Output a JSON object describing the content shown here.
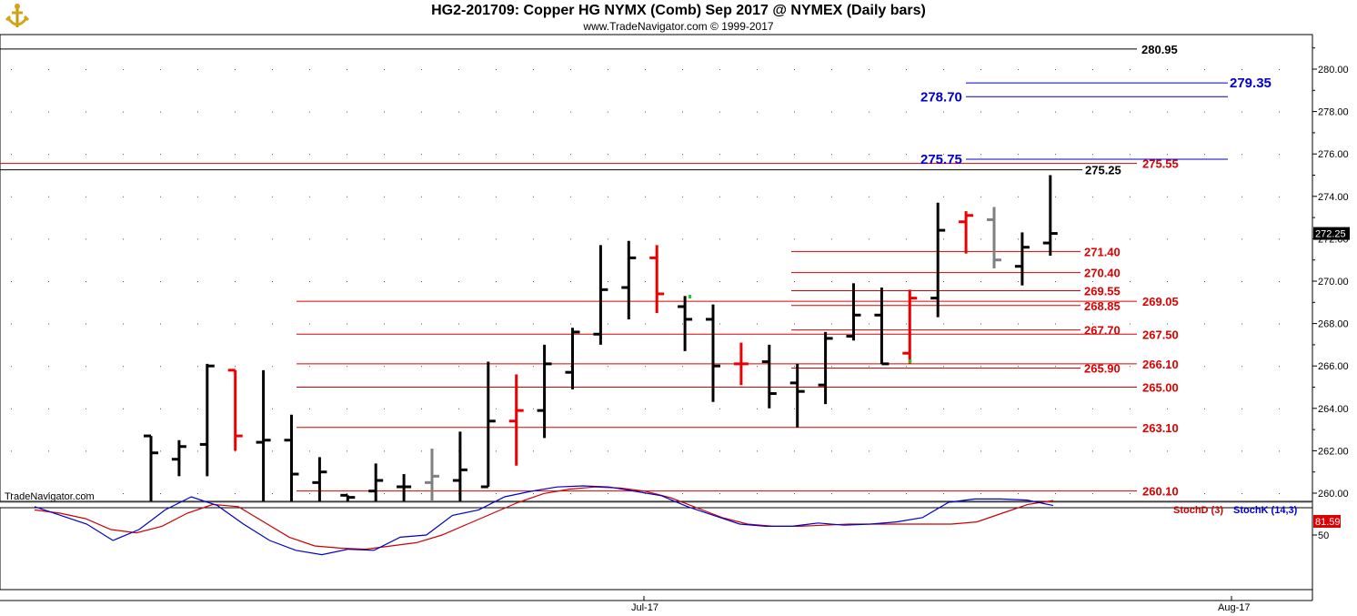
{
  "header": {
    "title": "HG2-201709:  Copper HG NYMX (Comb) Sep 2017 @ NYMEX  (Daily bars)",
    "subtitle": "www.TradeNavigator.com © 1999-2017"
  },
  "watermark": "TradeNavigator.com",
  "colors": {
    "up_bar": "#000000",
    "down_bar": "#ee0000",
    "neutral_bar": "#808080",
    "support_line": "#dd0000",
    "target_line": "#0000cc",
    "stochD": "#cc0000",
    "stochK": "#0000cc"
  },
  "chart_data": [
    {
      "type": "ohlc",
      "name": "price",
      "ylim": [
        259.6,
        281.8
      ],
      "y_ticks": [
        "260.00",
        "262.00",
        "264.00",
        "266.00",
        "268.00",
        "270.00",
        "272.00",
        "274.00",
        "276.00",
        "278.00",
        "280.00"
      ],
      "x_tick_labels": [
        "Jul-17",
        "Aug-17"
      ],
      "last_price_label": "272.25",
      "bars": [
        {
          "o": 262.7,
          "h": 262.7,
          "l": 259.6,
          "c": 261.9,
          "color": "black"
        },
        {
          "o": 261.6,
          "h": 262.5,
          "l": 260.8,
          "c": 262.2,
          "color": "black"
        },
        {
          "o": 262.3,
          "h": 266.1,
          "l": 260.8,
          "c": 266.0,
          "color": "black"
        },
        {
          "o": 265.8,
          "h": 265.8,
          "l": 262.0,
          "c": 262.7,
          "color": "red"
        },
        {
          "o": 262.4,
          "h": 265.8,
          "l": 259.6,
          "c": 262.5,
          "color": "black"
        },
        {
          "o": 262.5,
          "h": 263.7,
          "l": 259.6,
          "c": 260.9,
          "color": "black"
        },
        {
          "o": 260.5,
          "h": 261.7,
          "l": 259.6,
          "c": 261.0,
          "color": "black"
        },
        {
          "o": 259.9,
          "h": 259.9,
          "l": 259.6,
          "c": 259.8,
          "color": "black"
        },
        {
          "o": 260.1,
          "h": 261.4,
          "l": 259.6,
          "c": 260.6,
          "color": "black"
        },
        {
          "o": 260.3,
          "h": 260.9,
          "l": 259.6,
          "c": 260.3,
          "color": "black"
        },
        {
          "o": 260.5,
          "h": 262.1,
          "l": 259.6,
          "c": 260.8,
          "color": "gray"
        },
        {
          "o": 260.6,
          "h": 262.9,
          "l": 259.6,
          "c": 261.1,
          "color": "black"
        },
        {
          "o": 260.3,
          "h": 266.2,
          "l": 260.3,
          "c": 263.4,
          "color": "black"
        },
        {
          "o": 263.4,
          "h": 265.6,
          "l": 261.3,
          "c": 263.9,
          "color": "red"
        },
        {
          "o": 263.9,
          "h": 267.0,
          "l": 262.6,
          "c": 266.1,
          "color": "black"
        },
        {
          "o": 265.7,
          "h": 267.8,
          "l": 264.9,
          "c": 267.6,
          "color": "black"
        },
        {
          "o": 267.5,
          "h": 271.7,
          "l": 267.0,
          "c": 269.6,
          "color": "black"
        },
        {
          "o": 269.7,
          "h": 271.9,
          "l": 268.2,
          "c": 271.1,
          "color": "black"
        },
        {
          "o": 271.1,
          "h": 271.7,
          "l": 268.5,
          "c": 269.4,
          "color": "red"
        },
        {
          "o": 268.8,
          "h": 269.3,
          "l": 266.7,
          "c": 268.2,
          "color": "black"
        },
        {
          "o": 268.2,
          "h": 268.9,
          "l": 264.3,
          "c": 266.0,
          "color": "black"
        },
        {
          "o": 266.1,
          "h": 267.1,
          "l": 265.1,
          "c": 266.1,
          "color": "red"
        },
        {
          "o": 266.2,
          "h": 267.0,
          "l": 264.0,
          "c": 264.7,
          "color": "black"
        },
        {
          "o": 265.2,
          "h": 266.1,
          "l": 263.1,
          "c": 264.8,
          "color": "black"
        },
        {
          "o": 265.1,
          "h": 267.6,
          "l": 264.2,
          "c": 267.3,
          "color": "black"
        },
        {
          "o": 267.4,
          "h": 269.9,
          "l": 267.2,
          "c": 268.4,
          "color": "black"
        },
        {
          "o": 268.4,
          "h": 269.7,
          "l": 266.1,
          "c": 266.1,
          "color": "black"
        },
        {
          "o": 266.6,
          "h": 269.6,
          "l": 266.1,
          "c": 269.2,
          "color": "red"
        },
        {
          "o": 269.2,
          "h": 273.7,
          "l": 268.3,
          "c": 272.4,
          "color": "black"
        },
        {
          "o": 272.8,
          "h": 273.3,
          "l": 271.3,
          "c": 273.1,
          "color": "red"
        },
        {
          "o": 272.9,
          "h": 273.5,
          "l": 270.6,
          "c": 271.0,
          "color": "gray"
        },
        {
          "o": 270.7,
          "h": 272.3,
          "l": 269.8,
          "c": 271.6,
          "color": "black"
        },
        {
          "o": 271.8,
          "h": 275.0,
          "l": 271.2,
          "c": 272.25,
          "color": "black"
        }
      ],
      "levels": [
        {
          "value": 280.95,
          "label": "280.95",
          "color": "black",
          "span": "full"
        },
        {
          "value": 279.35,
          "label": "279.35",
          "color": "blue",
          "span": "short"
        },
        {
          "value": 278.7,
          "label": "278.70",
          "color": "blue",
          "span": "short"
        },
        {
          "value": 275.75,
          "label": "275.75",
          "color": "blue",
          "span": "short"
        },
        {
          "value": 275.55,
          "label": "275.55",
          "color": "red",
          "span": "full"
        },
        {
          "value": 275.25,
          "label": "275.25",
          "color": "black",
          "span": "full"
        },
        {
          "value": 271.4,
          "label": "271.40",
          "color": "red",
          "span": "short"
        },
        {
          "value": 270.4,
          "label": "270.40",
          "color": "red",
          "span": "short"
        },
        {
          "value": 269.55,
          "label": "269.55",
          "color": "red",
          "span": "short"
        },
        {
          "value": 269.05,
          "label": "269.05",
          "color": "red",
          "span": "long"
        },
        {
          "value": 268.85,
          "label": "268.85",
          "color": "red",
          "span": "short"
        },
        {
          "value": 267.7,
          "label": "267.70",
          "color": "red",
          "span": "short"
        },
        {
          "value": 267.5,
          "label": "267.50",
          "color": "red",
          "span": "long"
        },
        {
          "value": 266.1,
          "label": "266.10",
          "color": "red",
          "span": "long"
        },
        {
          "value": 265.9,
          "label": "265.90",
          "color": "red",
          "span": "short"
        },
        {
          "value": 265.0,
          "label": "265.00",
          "color": "red",
          "span": "long"
        },
        {
          "value": 263.1,
          "label": "263.10",
          "color": "red",
          "span": "long"
        },
        {
          "value": 260.1,
          "label": "260.10",
          "color": "red",
          "span": "long"
        }
      ]
    },
    {
      "type": "line",
      "name": "stochastic",
      "ylim": [
        0,
        100
      ],
      "y_ticks": [
        "50"
      ],
      "legend": [
        "StochD (3)",
        "StochK (14,3)"
      ],
      "last_value_label": "81.59",
      "series": [
        {
          "name": "StochD (3)",
          "values": [
            73,
            70,
            65,
            55,
            52,
            58,
            70,
            78,
            76,
            62,
            48,
            40,
            38,
            37,
            40,
            43,
            50,
            60,
            70,
            80,
            88,
            92,
            94,
            93,
            90,
            84,
            75,
            66,
            60,
            58,
            58,
            59,
            60,
            60,
            60,
            60,
            60,
            62,
            70,
            78,
            81.59
          ]
        },
        {
          "name": "StochK (14,3)",
          "values": [
            76,
            68,
            60,
            45,
            55,
            73,
            85,
            77,
            60,
            45,
            36,
            32,
            37,
            36,
            48,
            50,
            68,
            73,
            85,
            90,
            94,
            95,
            94,
            90,
            86,
            76,
            68,
            60,
            58,
            58,
            61,
            59,
            60,
            62,
            66,
            80,
            83,
            83,
            82,
            77
          ]
        }
      ]
    }
  ]
}
